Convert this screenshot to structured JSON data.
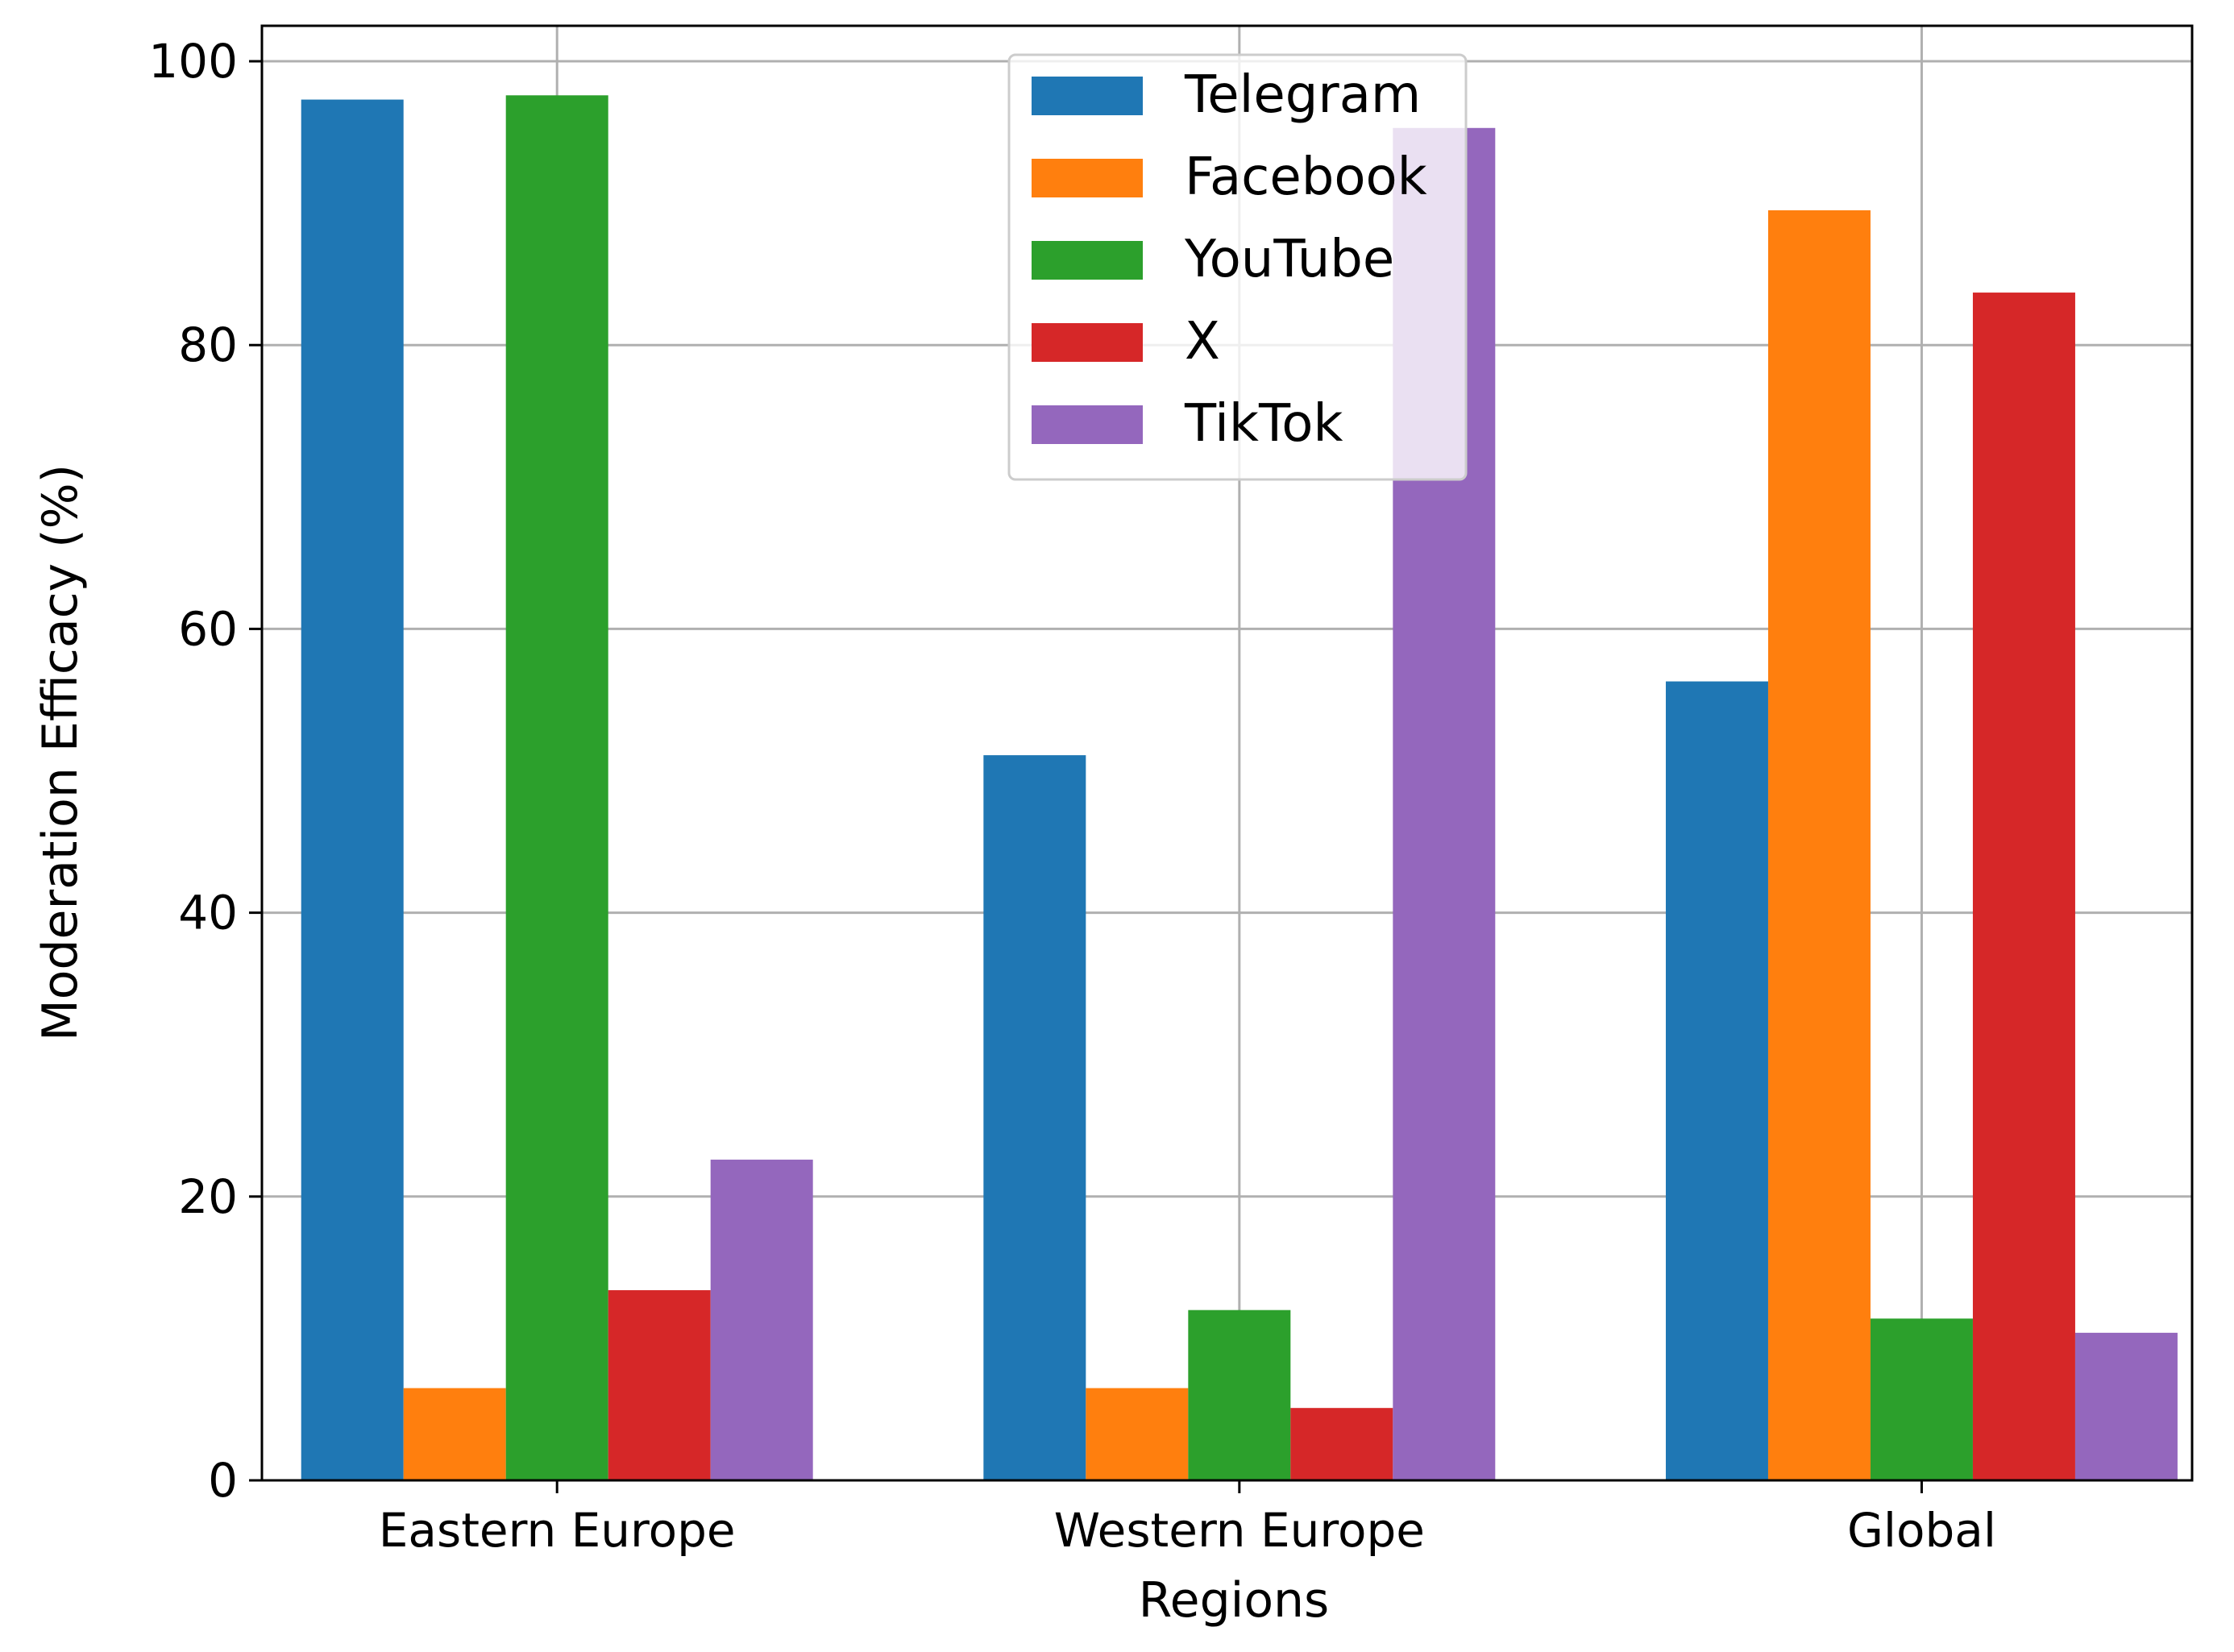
{
  "chart_data": {
    "type": "bar",
    "title": "",
    "xlabel": "Regions",
    "ylabel": "Moderation Efficacy (%)",
    "categories": [
      "Eastern Europe",
      "Western Europe",
      "Global"
    ],
    "series": [
      {
        "name": "Telegram",
        "color": "#1f77b4",
        "values": [
          97.3,
          51.1,
          56.3
        ]
      },
      {
        "name": "Facebook",
        "color": "#ff7f0e",
        "values": [
          6.5,
          6.5,
          89.5
        ]
      },
      {
        "name": "YouTube",
        "color": "#2ca02c",
        "values": [
          97.6,
          12.0,
          11.4
        ]
      },
      {
        "name": "X",
        "color": "#d62728",
        "values": [
          13.4,
          5.1,
          83.7
        ]
      },
      {
        "name": "TikTok",
        "color": "#9467bd",
        "values": [
          22.6,
          95.3,
          10.4
        ]
      }
    ],
    "ylim": [
      0,
      102.5
    ],
    "yticks": [
      0,
      20,
      40,
      60,
      80,
      100
    ],
    "grid": true,
    "legend": "upper center"
  }
}
